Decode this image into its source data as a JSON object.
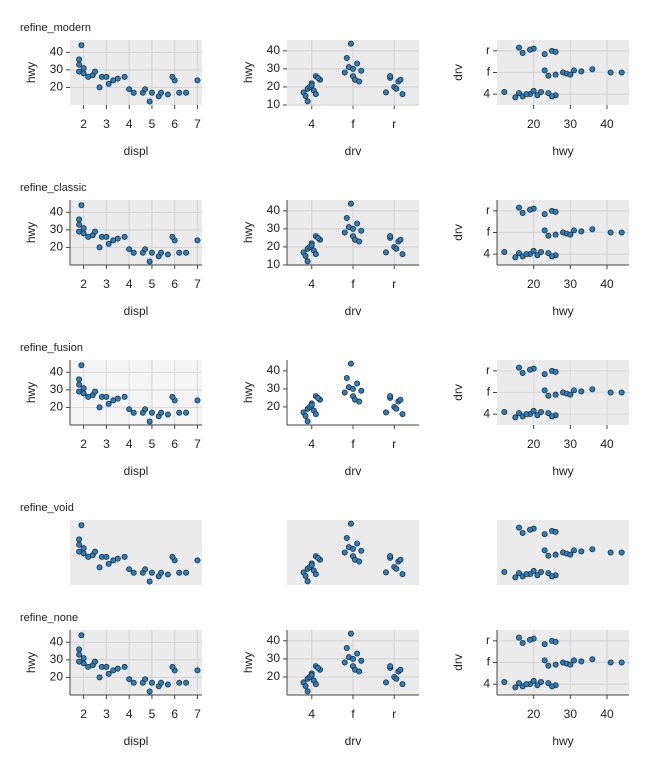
{
  "chart_data": [
    {
      "type": "scatter",
      "title": "refine_modern",
      "xlabel": "displ",
      "ylabel": "hwy",
      "color": "#2e7db8",
      "background": "#ebebeb",
      "grid": true,
      "grid_color": "#d6d6d6",
      "axis_line": false,
      "x": [
        1.8,
        1.8,
        2,
        2,
        1.9,
        2.4,
        2.5,
        2.8,
        3,
        3.3,
        3.5,
        3.8,
        4,
        4.2,
        4.6,
        4.7,
        5,
        5.3,
        5.4,
        5.7,
        6,
        6.2,
        6.5,
        7,
        2.2,
        3.1,
        4.9,
        5.9,
        1.8,
        2.7
      ],
      "y": [
        29,
        33,
        31,
        28,
        44,
        27,
        29,
        26,
        26,
        24,
        25,
        26,
        19,
        17,
        17,
        19,
        17,
        15,
        17,
        16,
        24,
        17,
        17,
        24,
        26,
        22,
        12,
        26,
        36,
        20
      ],
      "xlim": [
        1.4,
        7.2
      ],
      "ylim": [
        10,
        47
      ],
      "xticks": [
        2,
        3,
        4,
        5,
        6,
        7
      ],
      "yticks": [
        20,
        30,
        40
      ]
    },
    {
      "type": "scatter",
      "xlabel": "drv",
      "ylabel": "hwy",
      "color": "#2e7db8",
      "background": "#ebebeb",
      "grid": true,
      "grid_color": "#d6d6d6",
      "axis_line": false,
      "x": [
        0.8,
        0.9,
        1,
        1.1,
        1.2,
        0.85,
        0.95,
        1.05,
        1.15,
        0.9,
        1.1,
        1,
        1.8,
        1.9,
        2,
        2.1,
        2.2,
        1.85,
        1.95,
        2.05,
        2.15,
        2,
        2.8,
        2.9,
        3,
        3.1,
        3.2,
        2.9,
        3.05,
        3.15
      ],
      "y": [
        17,
        19,
        22,
        26,
        24,
        15,
        20,
        18,
        25,
        12,
        16,
        21,
        28,
        31,
        26,
        33,
        29,
        36,
        44,
        24,
        23,
        30,
        17,
        25,
        20,
        23,
        16,
        26,
        19,
        24
      ],
      "xlim": [
        0.4,
        3.6
      ],
      "ylim": [
        10,
        46
      ],
      "xticks": [
        {
          "value": 1,
          "label": "4"
        },
        {
          "value": 2,
          "label": "f"
        },
        {
          "value": 3,
          "label": "r"
        }
      ],
      "yticks": [
        10,
        20,
        30,
        40
      ]
    },
    {
      "type": "scatter",
      "xlabel": "hwy",
      "ylabel": "drv",
      "color": "#2e7db8",
      "background": "#ebebeb",
      "grid": true,
      "grid_color": "#d6d6d6",
      "axis_line": false,
      "x": [
        17,
        19,
        22,
        26,
        24,
        15,
        20,
        18,
        25,
        12,
        16,
        21,
        28,
        31,
        26,
        33,
        29,
        36,
        44,
        24,
        23,
        30,
        41,
        17,
        25,
        20,
        23,
        16,
        26,
        19
      ],
      "y": [
        0.9,
        1,
        1.1,
        0.95,
        1.05,
        0.85,
        1.15,
        1,
        0.9,
        1.1,
        1.05,
        0.95,
        2,
        2.1,
        1.9,
        2.05,
        1.95,
        2.15,
        2,
        1.85,
        2.1,
        1.9,
        2,
        2.9,
        3,
        3.1,
        2.85,
        3.15,
        2.95,
        3.05
      ],
      "xlim": [
        10,
        46
      ],
      "ylim": [
        0.5,
        3.5
      ],
      "xticks": [
        20,
        30,
        40
      ],
      "yticks": [
        {
          "value": 1,
          "label": "4"
        },
        {
          "value": 2,
          "label": "f"
        },
        {
          "value": 3,
          "label": "r"
        }
      ]
    },
    {
      "type": "scatter",
      "title": "refine_classic",
      "xlabel": "displ",
      "ylabel": "hwy",
      "color": "#2e7db8",
      "background": "#ebebeb",
      "grid": true,
      "grid_color": "#d6d6d6",
      "axis_line": true,
      "x": [
        1.8,
        1.8,
        2,
        2,
        1.9,
        2.4,
        2.5,
        2.8,
        3,
        3.3,
        3.5,
        3.8,
        4,
        4.2,
        4.6,
        4.7,
        5,
        5.3,
        5.4,
        5.7,
        6,
        6.2,
        6.5,
        7,
        2.2,
        3.1,
        4.9,
        5.9,
        1.8,
        2.7
      ],
      "y": [
        29,
        33,
        31,
        28,
        44,
        27,
        29,
        26,
        26,
        24,
        25,
        26,
        19,
        17,
        17,
        19,
        17,
        15,
        17,
        16,
        24,
        17,
        17,
        24,
        26,
        22,
        12,
        26,
        36,
        20
      ],
      "xlim": [
        1.4,
        7.2
      ],
      "ylim": [
        10,
        47
      ],
      "xticks": [
        2,
        3,
        4,
        5,
        6,
        7
      ],
      "yticks": [
        20,
        30,
        40
      ]
    },
    {
      "type": "scatter",
      "xlabel": "drv",
      "ylabel": "hwy",
      "color": "#2e7db8",
      "background": "#ebebeb",
      "grid": true,
      "grid_color": "#d6d6d6",
      "axis_line": true,
      "x": [
        0.8,
        0.9,
        1,
        1.1,
        1.2,
        0.85,
        0.95,
        1.05,
        1.15,
        0.9,
        1.1,
        1,
        1.8,
        1.9,
        2,
        2.1,
        2.2,
        1.85,
        1.95,
        2.05,
        2.15,
        2,
        2.8,
        2.9,
        3,
        3.1,
        3.2,
        2.9,
        3.05,
        3.15
      ],
      "y": [
        17,
        19,
        22,
        26,
        24,
        15,
        20,
        18,
        25,
        12,
        16,
        21,
        28,
        31,
        26,
        33,
        29,
        36,
        44,
        24,
        23,
        30,
        17,
        25,
        20,
        23,
        16,
        26,
        19,
        24
      ],
      "xlim": [
        0.4,
        3.6
      ],
      "ylim": [
        10,
        46
      ],
      "xticks": [
        {
          "value": 1,
          "label": "4"
        },
        {
          "value": 2,
          "label": "f"
        },
        {
          "value": 3,
          "label": "r"
        }
      ],
      "yticks": [
        10,
        20,
        30,
        40
      ]
    },
    {
      "type": "scatter",
      "xlabel": "hwy",
      "ylabel": "drv",
      "color": "#2e7db8",
      "background": "#ebebeb",
      "grid": true,
      "grid_color": "#d6d6d6",
      "axis_line": true,
      "x": [
        17,
        19,
        22,
        26,
        24,
        15,
        20,
        18,
        25,
        12,
        16,
        21,
        28,
        31,
        26,
        33,
        29,
        36,
        44,
        24,
        23,
        30,
        41,
        17,
        25,
        20,
        23,
        16,
        26,
        19
      ],
      "y": [
        0.9,
        1,
        1.1,
        0.95,
        1.05,
        0.85,
        1.15,
        1,
        0.9,
        1.1,
        1.05,
        0.95,
        2,
        2.1,
        1.9,
        2.05,
        1.95,
        2.15,
        2,
        1.85,
        2.1,
        1.9,
        2,
        2.9,
        3,
        3.1,
        2.85,
        3.15,
        2.95,
        3.05
      ],
      "xlim": [
        10,
        46
      ],
      "ylim": [
        0.5,
        3.5
      ],
      "xticks": [
        20,
        30,
        40
      ],
      "yticks": [
        {
          "value": 1,
          "label": "4"
        },
        {
          "value": 2,
          "label": "f"
        },
        {
          "value": 3,
          "label": "r"
        }
      ]
    },
    {
      "type": "scatter",
      "title": "refine_fusion",
      "xlabel": "displ",
      "ylabel": "hwy",
      "color": "#2e7db8",
      "background": "#f4f4f4",
      "grid": true,
      "grid_color": "#dcdcdc",
      "axis_line": true,
      "x": [
        1.8,
        1.8,
        2,
        2,
        1.9,
        2.4,
        2.5,
        2.8,
        3,
        3.3,
        3.5,
        3.8,
        4,
        4.2,
        4.6,
        4.7,
        5,
        5.3,
        5.4,
        5.7,
        6,
        6.2,
        6.5,
        7,
        2.2,
        3.1,
        4.9,
        5.9,
        1.8,
        2.7
      ],
      "y": [
        29,
        33,
        31,
        28,
        44,
        27,
        29,
        26,
        26,
        24,
        25,
        26,
        19,
        17,
        17,
        19,
        17,
        15,
        17,
        16,
        24,
        17,
        17,
        24,
        26,
        22,
        12,
        26,
        36,
        20
      ],
      "xlim": [
        1.4,
        7.2
      ],
      "ylim": [
        10,
        47
      ],
      "xticks": [
        2,
        3,
        4,
        5,
        6,
        7
      ],
      "yticks": [
        20,
        30,
        40
      ]
    },
    {
      "type": "scatter",
      "xlabel": "drv",
      "ylabel": "hwy",
      "color": "#2e7db8",
      "background": "#ffffff",
      "grid": false,
      "grid_color": "#dcdcdc",
      "axis_line": true,
      "x": [
        0.8,
        0.9,
        1,
        1.1,
        1.2,
        0.85,
        0.95,
        1.05,
        1.15,
        0.9,
        1.1,
        1,
        1.8,
        1.9,
        2,
        2.1,
        2.2,
        1.85,
        1.95,
        2.05,
        2.15,
        2,
        2.8,
        2.9,
        3,
        3.1,
        3.2,
        2.9,
        3.05,
        3.15
      ],
      "y": [
        17,
        19,
        22,
        26,
        24,
        15,
        20,
        18,
        25,
        12,
        16,
        21,
        28,
        31,
        26,
        33,
        29,
        36,
        44,
        24,
        23,
        30,
        17,
        25,
        20,
        23,
        16,
        26,
        19,
        24
      ],
      "xlim": [
        0.4,
        3.6
      ],
      "ylim": [
        10,
        46
      ],
      "xticks": [
        {
          "value": 1,
          "label": "4"
        },
        {
          "value": 2,
          "label": "f"
        },
        {
          "value": 3,
          "label": "r"
        }
      ],
      "yticks": [
        20,
        30,
        40
      ]
    },
    {
      "type": "scatter",
      "xlabel": "hwy",
      "ylabel": "drv",
      "color": "#2e7db8",
      "background": "#ebebeb",
      "grid": true,
      "grid_color": "#dcdcdc",
      "axis_line": false,
      "x": [
        17,
        19,
        22,
        26,
        24,
        15,
        20,
        18,
        25,
        12,
        16,
        21,
        28,
        31,
        26,
        33,
        29,
        36,
        44,
        24,
        23,
        30,
        41,
        17,
        25,
        20,
        23,
        16,
        26,
        19
      ],
      "y": [
        0.9,
        1,
        1.1,
        0.95,
        1.05,
        0.85,
        1.15,
        1,
        0.9,
        1.1,
        1.05,
        0.95,
        2,
        2.1,
        1.9,
        2.05,
        1.95,
        2.15,
        2,
        1.85,
        2.1,
        1.9,
        2,
        2.9,
        3,
        3.1,
        2.85,
        3.15,
        2.95,
        3.05
      ],
      "xlim": [
        10,
        46
      ],
      "ylim": [
        0.5,
        3.5
      ],
      "xticks": [
        20,
        30,
        40
      ],
      "yticks": [
        {
          "value": 1,
          "label": "4"
        },
        {
          "value": 2,
          "label": "f"
        },
        {
          "value": 3,
          "label": "r"
        }
      ]
    },
    {
      "type": "scatter",
      "title": "refine_void",
      "color": "#2e7db8",
      "background": "#ebebeb",
      "grid": false,
      "axis_line": false,
      "x": [
        1.8,
        1.8,
        2,
        2,
        1.9,
        2.4,
        2.5,
        2.8,
        3,
        3.3,
        3.5,
        3.8,
        4,
        4.2,
        4.6,
        4.7,
        5,
        5.3,
        5.4,
        5.7,
        6,
        6.2,
        6.5,
        7,
        2.2,
        3.1,
        4.9,
        5.9,
        1.8,
        2.7
      ],
      "y": [
        29,
        33,
        31,
        28,
        44,
        27,
        29,
        26,
        26,
        24,
        25,
        26,
        19,
        17,
        17,
        19,
        17,
        15,
        17,
        16,
        24,
        17,
        17,
        24,
        26,
        22,
        12,
        26,
        36,
        20
      ],
      "xlim": [
        1.4,
        7.2
      ],
      "ylim": [
        10,
        47
      ]
    },
    {
      "type": "scatter",
      "color": "#2e7db8",
      "background": "#ebebeb",
      "grid": false,
      "axis_line": false,
      "x": [
        0.8,
        0.9,
        1,
        1.1,
        1.2,
        0.85,
        0.95,
        1.05,
        1.15,
        0.9,
        1.1,
        1,
        1.8,
        1.9,
        2,
        2.1,
        2.2,
        1.85,
        1.95,
        2.05,
        2.15,
        2,
        2.8,
        2.9,
        3,
        3.1,
        3.2,
        2.9,
        3.05,
        3.15
      ],
      "y": [
        17,
        19,
        22,
        26,
        24,
        15,
        20,
        18,
        25,
        12,
        16,
        21,
        28,
        31,
        26,
        33,
        29,
        36,
        44,
        24,
        23,
        30,
        17,
        25,
        20,
        23,
        16,
        26,
        19,
        24
      ],
      "xlim": [
        0.4,
        3.6
      ],
      "ylim": [
        10,
        46
      ]
    },
    {
      "type": "scatter",
      "color": "#2e7db8",
      "background": "#ebebeb",
      "grid": false,
      "axis_line": false,
      "x": [
        17,
        19,
        22,
        26,
        24,
        15,
        20,
        18,
        25,
        12,
        16,
        21,
        28,
        31,
        26,
        33,
        29,
        36,
        44,
        24,
        23,
        30,
        41,
        17,
        25,
        20,
        23,
        16,
        26,
        19
      ],
      "y": [
        0.9,
        1,
        1.1,
        0.95,
        1.05,
        0.85,
        1.15,
        1,
        0.9,
        1.1,
        1.05,
        0.95,
        2,
        2.1,
        1.9,
        2.05,
        1.95,
        2.15,
        2,
        1.85,
        2.1,
        1.9,
        2,
        2.9,
        3,
        3.1,
        2.85,
        3.15,
        2.95,
        3.05
      ],
      "xlim": [
        10,
        46
      ],
      "ylim": [
        0.5,
        3.5
      ]
    },
    {
      "type": "scatter",
      "title": "refine_none",
      "xlabel": "displ",
      "ylabel": "hwy",
      "color": "#2e7db8",
      "background": "#ebebeb",
      "grid": true,
      "grid_color": "#d6d6d6",
      "axis_line": true,
      "x": [
        1.8,
        1.8,
        2,
        2,
        1.9,
        2.4,
        2.5,
        2.8,
        3,
        3.3,
        3.5,
        3.8,
        4,
        4.2,
        4.6,
        4.7,
        5,
        5.3,
        5.4,
        5.7,
        6,
        6.2,
        6.5,
        7,
        2.2,
        3.1,
        4.9,
        5.9,
        1.8,
        2.7
      ],
      "y": [
        29,
        33,
        31,
        28,
        44,
        27,
        29,
        26,
        26,
        24,
        25,
        26,
        19,
        17,
        17,
        19,
        17,
        15,
        17,
        16,
        24,
        17,
        17,
        24,
        26,
        22,
        12,
        26,
        36,
        20
      ],
      "xlim": [
        1.4,
        7.2
      ],
      "ylim": [
        10,
        47
      ],
      "xticks": [
        2,
        3,
        4,
        5,
        6,
        7
      ],
      "yticks": [
        20,
        30,
        40
      ]
    },
    {
      "type": "scatter",
      "xlabel": "drv",
      "ylabel": "hwy",
      "color": "#2e7db8",
      "background": "#ebebeb",
      "grid": true,
      "grid_color": "#d6d6d6",
      "axis_line": true,
      "x": [
        0.8,
        0.9,
        1,
        1.1,
        1.2,
        0.85,
        0.95,
        1.05,
        1.15,
        0.9,
        1.1,
        1,
        1.8,
        1.9,
        2,
        2.1,
        2.2,
        1.85,
        1.95,
        2.05,
        2.15,
        2,
        2.8,
        2.9,
        3,
        3.1,
        3.2,
        2.9,
        3.05,
        3.15
      ],
      "y": [
        17,
        19,
        22,
        26,
        24,
        15,
        20,
        18,
        25,
        12,
        16,
        21,
        28,
        31,
        26,
        33,
        29,
        36,
        44,
        24,
        23,
        30,
        17,
        25,
        20,
        23,
        16,
        26,
        19,
        24
      ],
      "xlim": [
        0.4,
        3.6
      ],
      "ylim": [
        10,
        46
      ],
      "xticks": [
        {
          "value": 1,
          "label": "4"
        },
        {
          "value": 2,
          "label": "f"
        },
        {
          "value": 3,
          "label": "r"
        }
      ],
      "yticks": [
        20,
        30,
        40
      ]
    },
    {
      "type": "scatter",
      "xlabel": "hwy",
      "ylabel": "drv",
      "color": "#2e7db8",
      "background": "#ebebeb",
      "grid": true,
      "grid_color": "#d6d6d6",
      "axis_line": true,
      "x": [
        17,
        19,
        22,
        26,
        24,
        15,
        20,
        18,
        25,
        12,
        16,
        21,
        28,
        31,
        26,
        33,
        29,
        36,
        44,
        24,
        23,
        30,
        41,
        17,
        25,
        20,
        23,
        16,
        26,
        19
      ],
      "y": [
        0.9,
        1,
        1.1,
        0.95,
        1.05,
        0.85,
        1.15,
        1,
        0.9,
        1.1,
        1.05,
        0.95,
        2,
        2.1,
        1.9,
        2.05,
        1.95,
        2.15,
        2,
        1.85,
        2.1,
        1.9,
        2,
        2.9,
        3,
        3.1,
        2.85,
        3.15,
        2.95,
        3.05
      ],
      "xlim": [
        10,
        46
      ],
      "ylim": [
        0.5,
        3.5
      ],
      "xticks": [
        20,
        30,
        40
      ],
      "yticks": [
        {
          "value": 1,
          "label": "4"
        },
        {
          "value": 2,
          "label": "f"
        },
        {
          "value": 3,
          "label": "r"
        }
      ]
    }
  ]
}
